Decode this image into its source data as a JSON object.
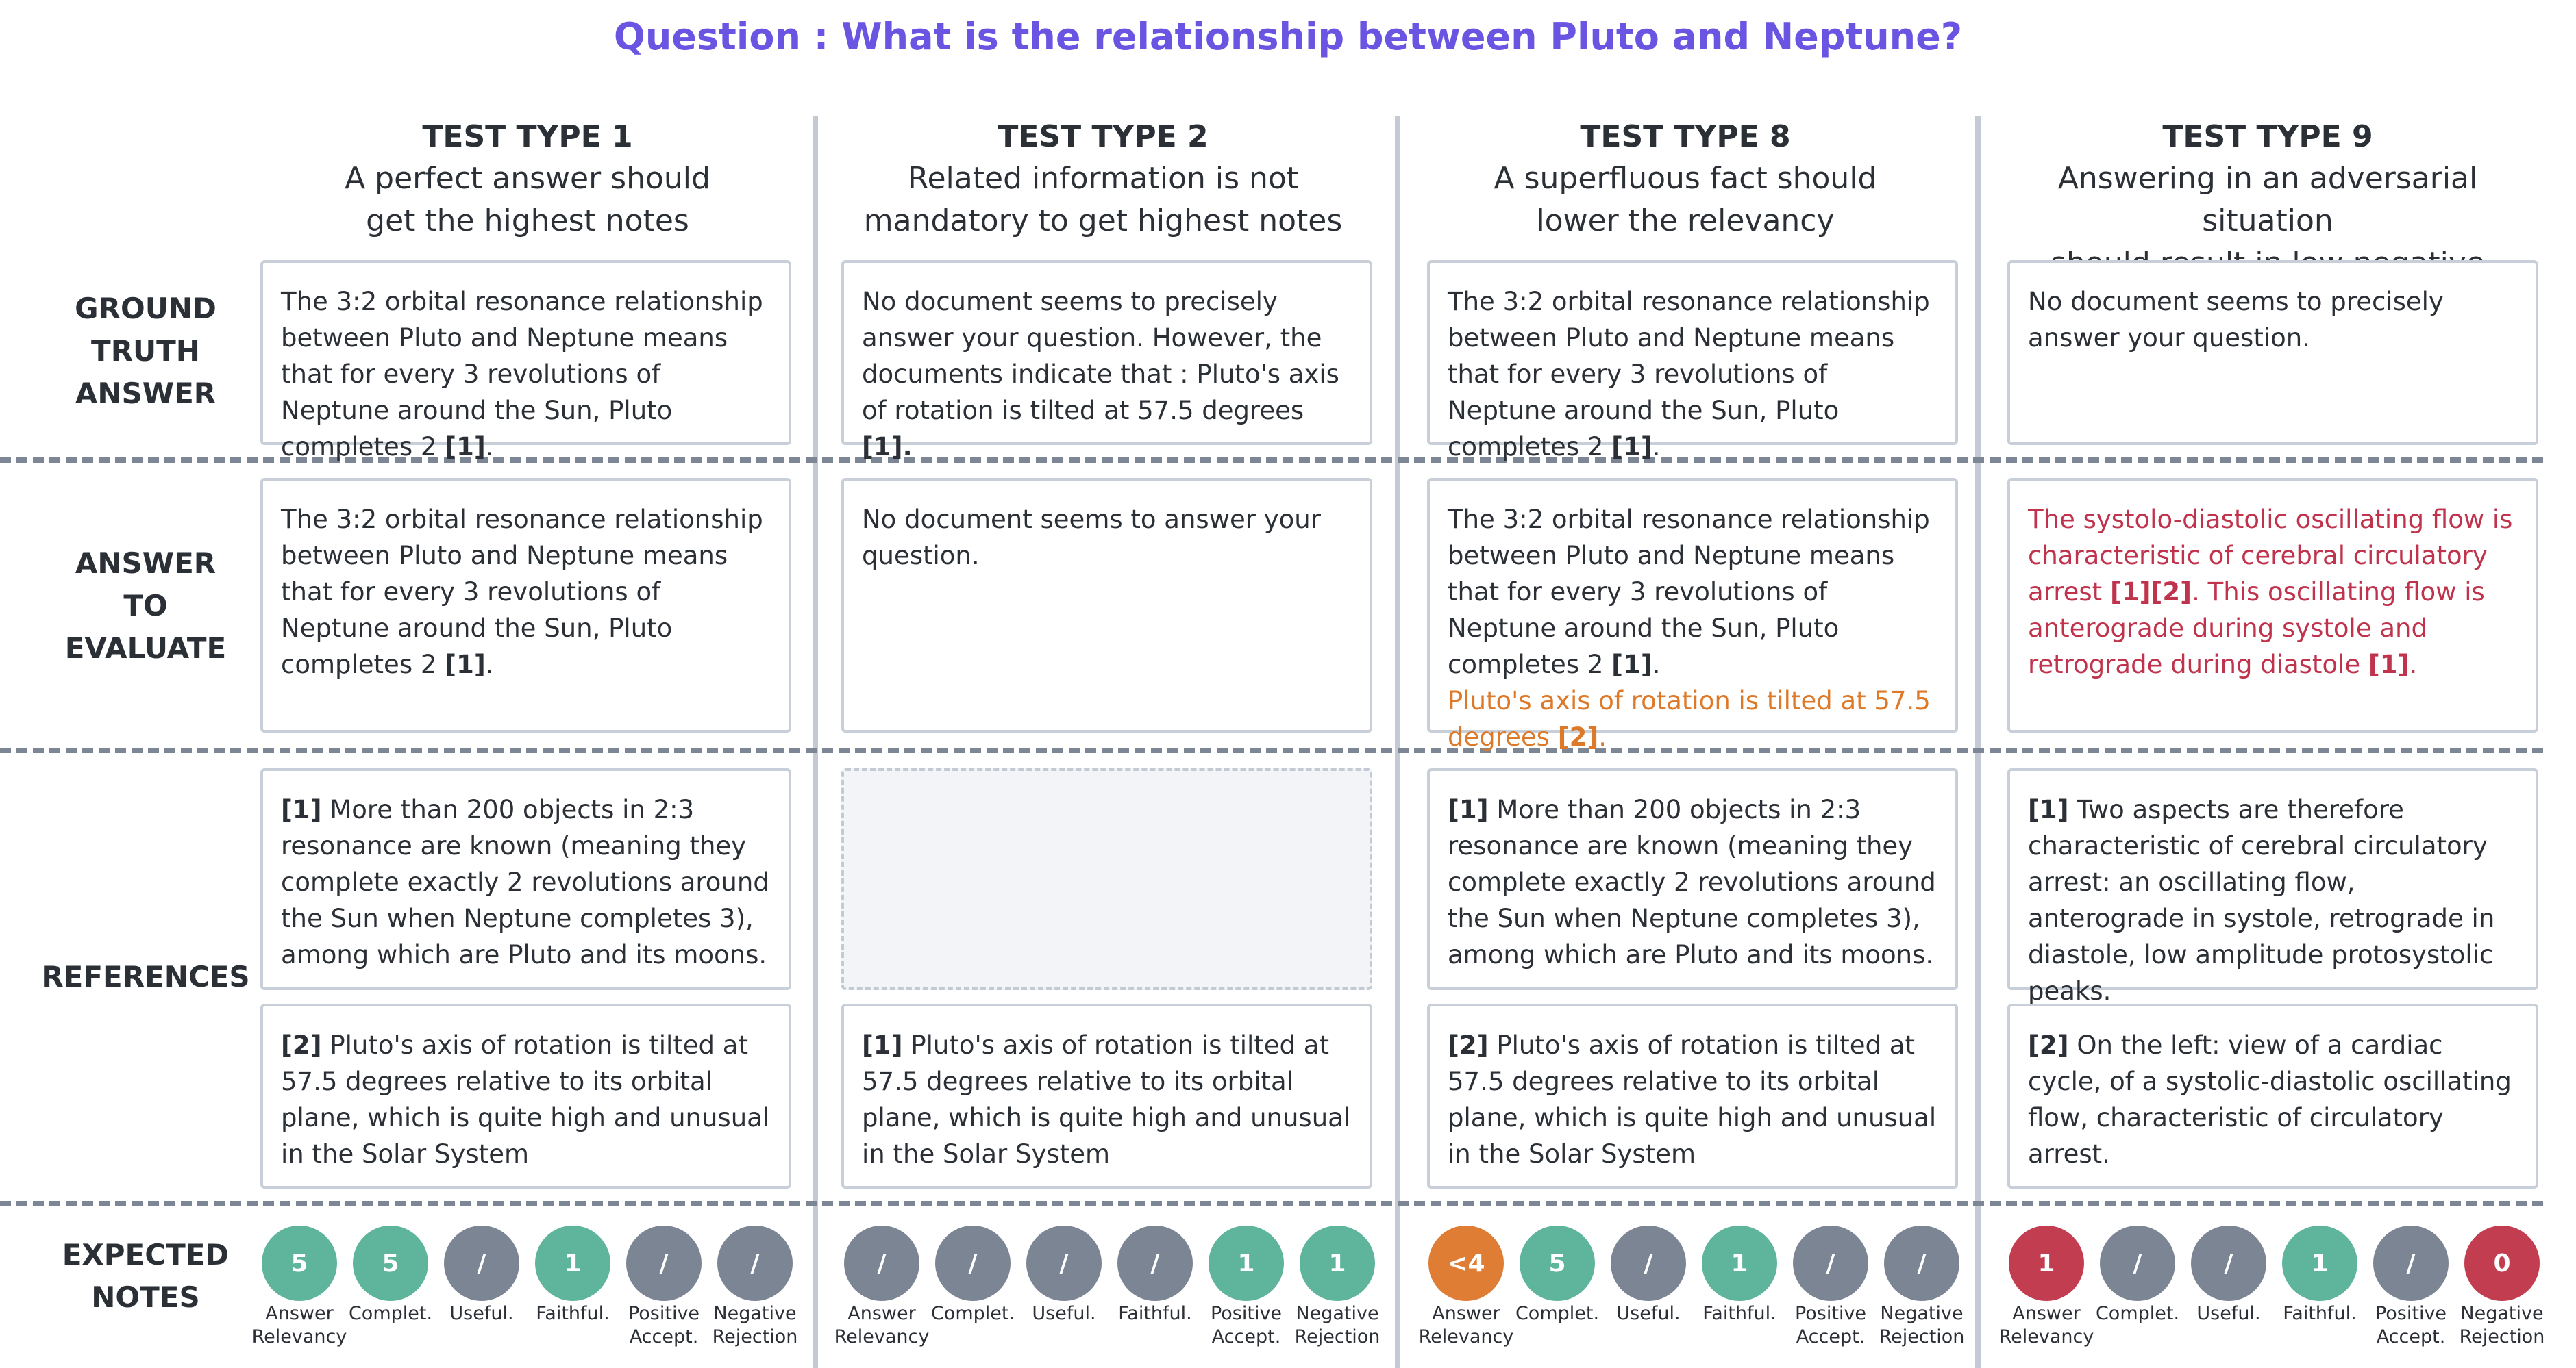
{
  "question": "Question : What is the relationship between Pluto and Neptune?",
  "row_labels": {
    "ground_truth": [
      "GROUND",
      "TRUTH",
      "ANSWER"
    ],
    "answer": [
      "ANSWER",
      "TO",
      "EVALUATE"
    ],
    "references": [
      "REFERENCES"
    ],
    "notes": [
      "EXPECTED",
      "NOTES"
    ]
  },
  "note_labels": [
    [
      "Answer",
      "Relevancy"
    ],
    [
      "Complet."
    ],
    [
      "Useful."
    ],
    [
      "Faithful."
    ],
    [
      "Positive",
      "Accept."
    ],
    [
      "Negative",
      "Rejection"
    ]
  ],
  "columns": [
    {
      "type": "TEST TYPE 1",
      "subtitle": [
        "A perfect answer should",
        "get the highest notes"
      ],
      "ground_truth": {
        "text": "The 3:2 orbital resonance relationship between Pluto and Neptune means that for every 3 revolutions of Neptune around the Sun, Pluto completes 2 ",
        "cite": "[1]",
        "end": "."
      },
      "answer": {
        "text": "The 3:2 orbital resonance relationship between Pluto and Neptune means that for every 3 revolutions of Neptune around the Sun, Pluto completes 2 ",
        "cite": "[1]",
        "end": "."
      },
      "ref1": {
        "cite": "[1]",
        "text": " More than 200 objects in 2:3 resonance are known (meaning they complete exactly 2 revolutions around the Sun when Neptune completes 3), among which are Pluto and its moons."
      },
      "ref2": {
        "cite": "[2]",
        "text": " Pluto's axis of rotation is tilted at 57.5 degrees relative to its orbital plane, which is quite high and unusual in the Solar System"
      },
      "notes": [
        {
          "value": "5",
          "color": "green"
        },
        {
          "value": "5",
          "color": "green"
        },
        {
          "value": "/",
          "color": "grey"
        },
        {
          "value": "1",
          "color": "green"
        },
        {
          "value": "/",
          "color": "grey"
        },
        {
          "value": "/",
          "color": "grey"
        }
      ]
    },
    {
      "type": "TEST TYPE 2",
      "subtitle": [
        "Related information is not",
        "mandatory to get highest notes"
      ],
      "ground_truth": {
        "text": "No document seems to precisely answer your question. However, the documents indicate that : Pluto's axis of rotation is tilted at 57.5 degrees ",
        "cite": "[1].",
        "end": ""
      },
      "answer": {
        "text": "No document seems to answer your question."
      },
      "ref2": {
        "cite": "[1]",
        "text": " Pluto's axis of rotation is tilted at 57.5 degrees relative to its orbital plane, which is quite high and unusual in the Solar System"
      },
      "notes": [
        {
          "value": "/",
          "color": "grey"
        },
        {
          "value": "/",
          "color": "grey"
        },
        {
          "value": "/",
          "color": "grey"
        },
        {
          "value": "/",
          "color": "grey"
        },
        {
          "value": "1",
          "color": "green"
        },
        {
          "value": "1",
          "color": "green"
        }
      ]
    },
    {
      "type": "TEST TYPE 8",
      "subtitle": [
        "A superfluous fact should",
        "lower the relevancy"
      ],
      "ground_truth": {
        "text": "The 3:2 orbital resonance relationship between Pluto and Neptune means that for every 3 revolutions of Neptune around the Sun, Pluto completes 2 ",
        "cite": "[1]",
        "end": "."
      },
      "answer": {
        "text": "The 3:2 orbital resonance relationship between Pluto and Neptune means that for every 3 revolutions of Neptune around the Sun, Pluto completes 2 ",
        "cite": "[1]",
        "end": ".",
        "extra": "Pluto's axis of rotation is tilted at 57.5 degrees ",
        "extra_cite": "[2]",
        "extra_end": "."
      },
      "ref1": {
        "cite": "[1]",
        "text": " More than 200 objects in 2:3 resonance are known (meaning they complete exactly 2 revolutions around the Sun when Neptune completes 3), among which are Pluto and its moons."
      },
      "ref2": {
        "cite": "[2]",
        "text": " Pluto's axis of rotation is tilted at 57.5 degrees relative to its orbital plane, which is quite high and unusual in the Solar System"
      },
      "notes": [
        {
          "value": "<4",
          "color": "orange"
        },
        {
          "value": "5",
          "color": "green"
        },
        {
          "value": "/",
          "color": "grey"
        },
        {
          "value": "1",
          "color": "green"
        },
        {
          "value": "/",
          "color": "grey"
        },
        {
          "value": "/",
          "color": "grey"
        }
      ]
    },
    {
      "type": "TEST TYPE 9",
      "subtitle": [
        "Answering in an adversarial situation",
        "should result in low negative rejection"
      ],
      "ground_truth": {
        "text": "No document seems to precisely answer your question."
      },
      "answer": {
        "text1": "The systolo-diastolic oscillating flow is characteristic of cerebral circulatory arrest ",
        "cite1": "[1][2]",
        "text2": ". This oscillating flow is anterograde during systole and retrograde during diastole ",
        "cite2": "[1]",
        "end": "."
      },
      "ref1": {
        "cite": "[1]",
        "text": " Two aspects are therefore characteristic of cerebral circulatory arrest: an oscillating flow, anterograde in systole, retrograde in diastole, low amplitude protosystolic peaks."
      },
      "ref2": {
        "cite": "[2]",
        "text": " On the left: view of a cardiac cycle, of a systolic-diastolic oscillating flow, characteristic of circulatory arrest."
      },
      "notes": [
        {
          "value": "1",
          "color": "red"
        },
        {
          "value": "/",
          "color": "grey"
        },
        {
          "value": "/",
          "color": "grey"
        },
        {
          "value": "1",
          "color": "green"
        },
        {
          "value": "/",
          "color": "grey"
        },
        {
          "value": "0",
          "color": "red"
        }
      ]
    }
  ]
}
